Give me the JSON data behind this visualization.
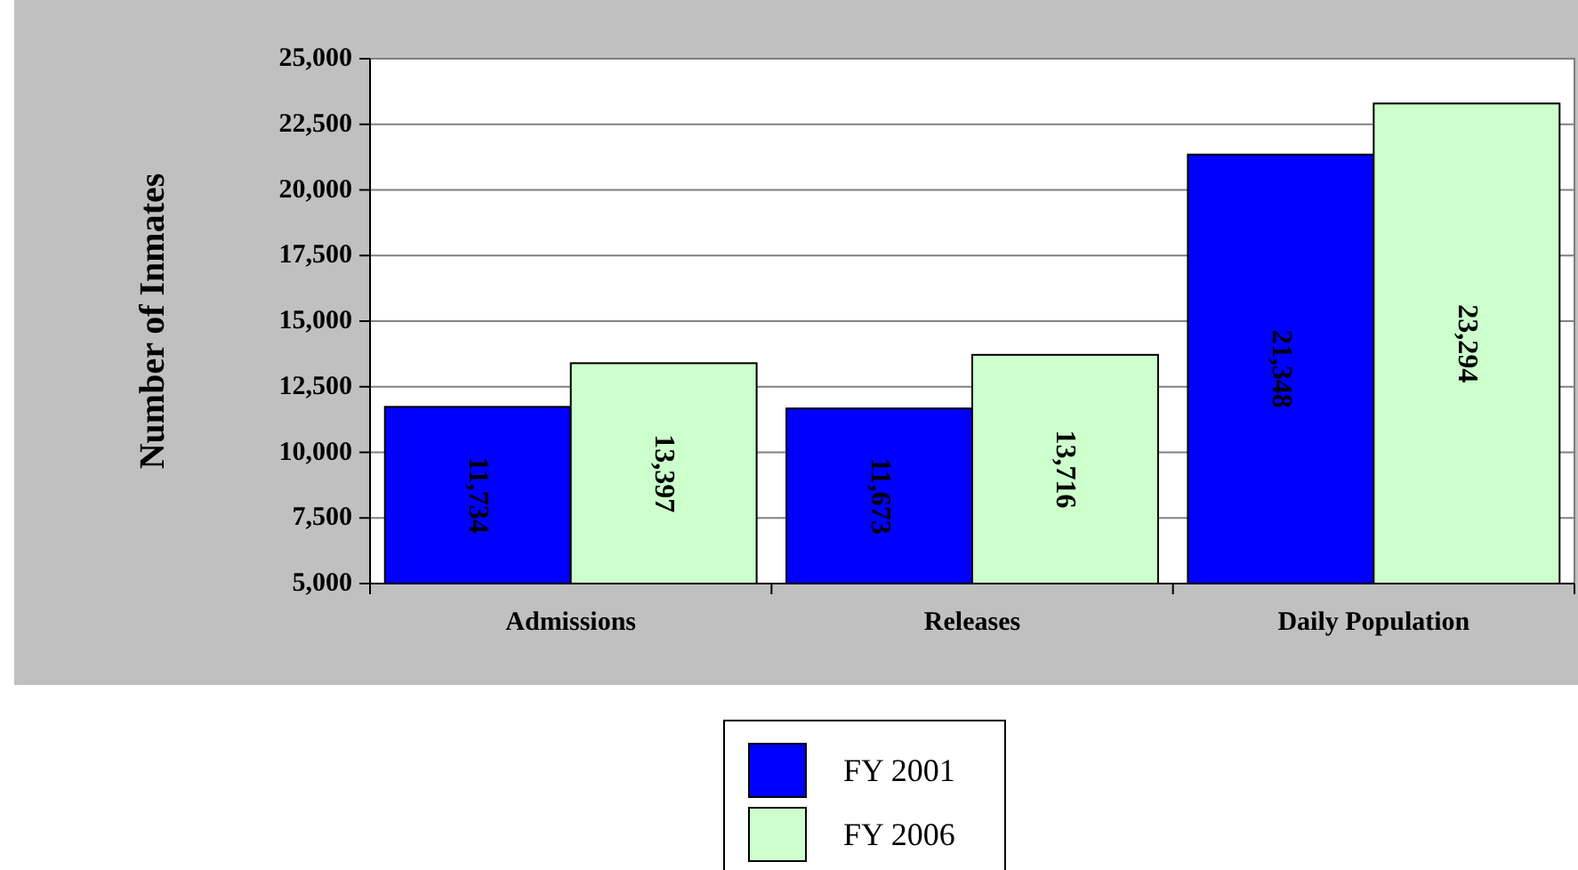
{
  "chart_data": {
    "type": "bar",
    "ylabel": "Number of Inmates",
    "categories": [
      "Admissions",
      "Releases",
      "Daily Population"
    ],
    "series": [
      {
        "name": "FY 2001",
        "color": "#0000ff",
        "values": [
          11734,
          11673,
          21348
        ],
        "value_labels": [
          "11,734",
          "11,673",
          "21,348"
        ]
      },
      {
        "name": "FY 2006",
        "color": "#ccffcc",
        "values": [
          13397,
          13716,
          23294
        ],
        "value_labels": [
          "13,397",
          "13,716",
          "23,294"
        ]
      }
    ],
    "ylim": [
      5000,
      25000
    ],
    "yticks": [
      {
        "value": 5000,
        "label": "5,000"
      },
      {
        "value": 7500,
        "label": "7,500"
      },
      {
        "value": 10000,
        "label": "10,000"
      },
      {
        "value": 12500,
        "label": "12,500"
      },
      {
        "value": 15000,
        "label": "15,000"
      },
      {
        "value": 17500,
        "label": "17,500"
      },
      {
        "value": 20000,
        "label": "20,000"
      },
      {
        "value": 22500,
        "label": "22,500"
      },
      {
        "value": 25000,
        "label": "25,000"
      }
    ],
    "grid": "y",
    "legend": "bottom"
  }
}
